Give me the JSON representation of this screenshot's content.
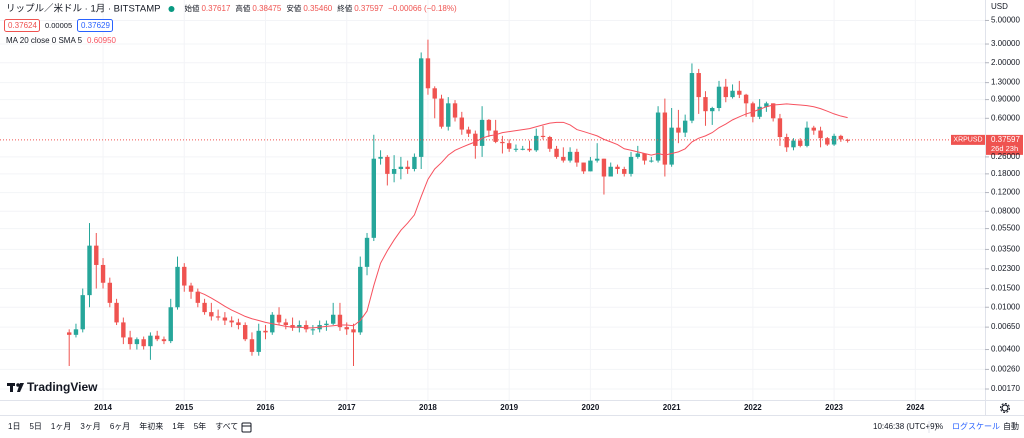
{
  "chart_data": {
    "type": "candlestick",
    "log_scale": true,
    "grid": true,
    "currency": "USD",
    "up_color": "#26a69a",
    "down_color": "#ef5350",
    "ylim": [
      0.00134,
      6.55
    ],
    "yticks": [
      {
        "value": 5,
        "label": "5.00000"
      },
      {
        "value": 3,
        "label": "3.00000"
      },
      {
        "value": 2,
        "label": "2.00000"
      },
      {
        "value": 1.3,
        "label": "1.30000"
      },
      {
        "value": 0.9,
        "label": "0.90000"
      },
      {
        "value": 0.6,
        "label": "0.60000"
      },
      {
        "value": 0.26,
        "label": "0.26000"
      },
      {
        "value": 0.18,
        "label": "0.18000"
      },
      {
        "value": 0.12,
        "label": "0.12000"
      },
      {
        "value": 0.08,
        "label": "0.08000"
      },
      {
        "value": 0.055,
        "label": "0.05500"
      },
      {
        "value": 0.035,
        "label": "0.03500"
      },
      {
        "value": 0.023,
        "label": "0.02300"
      },
      {
        "value": 0.015,
        "label": "0.01500"
      },
      {
        "value": 0.01,
        "label": "0.01000"
      },
      {
        "value": 0.0065,
        "label": "0.00650"
      },
      {
        "value": 0.004,
        "label": "0.00400"
      },
      {
        "value": 0.0026,
        "label": "0.00260"
      },
      {
        "value": 0.0017,
        "label": "0.00170"
      }
    ],
    "categories": [
      null,
      null,
      null,
      null,
      null,
      "2014",
      null,
      null,
      null,
      null,
      null,
      null,
      null,
      null,
      null,
      null,
      null,
      "2015",
      null,
      null,
      null,
      null,
      null,
      null,
      null,
      null,
      null,
      null,
      null,
      "2016",
      null,
      null,
      null,
      null,
      null,
      null,
      null,
      null,
      null,
      null,
      null,
      "2017",
      null,
      null,
      null,
      null,
      null,
      null,
      null,
      null,
      null,
      null,
      null,
      "2018",
      null,
      null,
      null,
      null,
      null,
      null,
      null,
      null,
      null,
      null,
      null,
      "2019",
      null,
      null,
      null,
      null,
      null,
      null,
      null,
      null,
      null,
      null,
      null,
      "2020",
      null,
      null,
      null,
      null,
      null,
      null,
      null,
      null,
      null,
      null,
      null,
      "2021",
      null,
      null,
      null,
      null,
      null,
      null,
      null,
      null,
      null,
      null,
      null,
      "2022",
      null,
      null,
      null,
      null,
      null,
      null,
      null,
      null,
      null,
      null,
      null,
      "2023",
      null,
      null,
      null,
      null,
      null,
      null,
      null,
      null,
      null,
      null,
      null,
      "2024",
      null,
      null,
      null,
      null,
      null,
      null,
      null,
      null,
      null,
      null
    ],
    "open": [
      0.0058,
      0.0055,
      0.0062,
      0.013,
      0.038,
      0.025,
      0.017,
      0.011,
      0.0072,
      0.0052,
      0.0045,
      0.005,
      0.0043,
      0.0054,
      0.005,
      0.0048,
      0.01,
      0.024,
      0.016,
      0.014,
      0.011,
      0.009,
      0.0082,
      0.008,
      0.0075,
      0.0072,
      0.0068,
      0.005,
      0.0038,
      0.006,
      0.0058,
      0.0085,
      0.0072,
      0.0068,
      0.0064,
      0.0068,
      0.0062,
      0.0062,
      0.0068,
      0.007,
      0.0085,
      0.0065,
      0.0062,
      0.0058,
      0.024,
      0.045,
      0.25,
      0.26,
      0.18,
      0.2,
      0.21,
      0.2,
      0.26,
      2.2,
      1.15,
      0.92,
      0.5,
      0.83,
      0.61,
      0.47,
      0.43,
      0.33,
      0.58,
      0.46,
      0.36,
      0.35,
      0.31,
      0.31,
      0.31,
      0.3,
      0.41,
      0.4,
      0.31,
      0.26,
      0.24,
      0.29,
      0.23,
      0.19,
      0.24,
      0.25,
      0.17,
      0.21,
      0.2,
      0.18,
      0.26,
      0.28,
      0.24,
      0.24,
      0.68,
      0.22,
      0.49,
      0.44,
      0.57,
      1.6,
      0.95,
      0.7,
      0.75,
      1.19,
      0.95,
      1.09,
      1.0,
      0.83,
      0.62,
      0.77,
      0.83,
      0.6,
      0.4,
      0.32,
      0.37,
      0.33,
      0.49,
      0.46,
      0.39,
      0.34,
      0.41,
      0.37617,
      null,
      null,
      null,
      null,
      null,
      null,
      null,
      null,
      null,
      null,
      null,
      null,
      null,
      null,
      null,
      null,
      null,
      null,
      null,
      null
    ],
    "high": [
      0.0062,
      0.007,
      0.015,
      0.062,
      0.05,
      0.029,
      0.019,
      0.012,
      0.008,
      0.006,
      0.0052,
      0.0053,
      0.0058,
      0.006,
      0.0053,
      0.012,
      0.03,
      0.026,
      0.017,
      0.015,
      0.012,
      0.011,
      0.0095,
      0.009,
      0.0082,
      0.0078,
      0.0072,
      0.0058,
      0.007,
      0.0068,
      0.009,
      0.01,
      0.0078,
      0.008,
      0.0075,
      0.0075,
      0.0068,
      0.0075,
      0.0075,
      0.011,
      0.011,
      0.0072,
      0.007,
      0.03,
      0.05,
      0.42,
      0.3,
      0.27,
      0.27,
      0.26,
      0.24,
      0.28,
      2.5,
      3.3,
      1.2,
      1.0,
      0.95,
      0.89,
      0.69,
      0.5,
      0.46,
      0.78,
      0.59,
      0.58,
      0.41,
      0.38,
      0.34,
      0.33,
      0.37,
      0.48,
      0.51,
      0.41,
      0.33,
      0.32,
      0.32,
      0.31,
      0.23,
      0.26,
      0.35,
      0.25,
      0.23,
      0.22,
      0.21,
      0.29,
      0.33,
      0.28,
      0.26,
      0.78,
      0.92,
      0.75,
      0.72,
      0.65,
      1.97,
      1.75,
      1.08,
      0.77,
      1.35,
      1.41,
      1.25,
      1.35,
      1.02,
      0.86,
      0.91,
      0.86,
      0.83,
      0.66,
      0.43,
      0.39,
      0.39,
      0.56,
      0.51,
      0.5,
      0.4,
      0.43,
      0.42,
      0.38475,
      null,
      null,
      null,
      null,
      null,
      null,
      null,
      null,
      null,
      null,
      null,
      null,
      null,
      null,
      null,
      null,
      null,
      null,
      null,
      null
    ],
    "low": [
      0.0028,
      0.0052,
      0.0058,
      0.01,
      0.015,
      0.015,
      0.01,
      0.0068,
      0.0045,
      0.004,
      0.004,
      0.004,
      0.0032,
      0.0048,
      0.0045,
      0.0046,
      0.0095,
      0.014,
      0.012,
      0.01,
      0.0085,
      0.0075,
      0.0075,
      0.0068,
      0.0065,
      0.0062,
      0.0048,
      0.0035,
      0.0035,
      0.005,
      0.0055,
      0.0068,
      0.0062,
      0.006,
      0.0058,
      0.0058,
      0.0055,
      0.0058,
      0.006,
      0.0068,
      0.006,
      0.0055,
      0.0028,
      0.0055,
      0.02,
      0.042,
      0.22,
      0.14,
      0.15,
      0.16,
      0.18,
      0.19,
      0.2,
      1.0,
      0.6,
      0.48,
      0.46,
      0.56,
      0.42,
      0.4,
      0.25,
      0.26,
      0.4,
      0.35,
      0.28,
      0.29,
      0.29,
      0.3,
      0.29,
      0.29,
      0.38,
      0.29,
      0.25,
      0.23,
      0.23,
      0.21,
      0.18,
      0.19,
      0.23,
      0.115,
      0.17,
      0.18,
      0.17,
      0.17,
      0.25,
      0.22,
      0.23,
      0.23,
      0.17,
      0.21,
      0.35,
      0.4,
      0.54,
      0.66,
      0.51,
      0.52,
      0.7,
      0.85,
      0.92,
      0.93,
      0.62,
      0.55,
      0.59,
      0.69,
      0.56,
      0.33,
      0.29,
      0.3,
      0.32,
      0.32,
      0.42,
      0.32,
      0.33,
      0.33,
      0.36,
      0.3546,
      null,
      null,
      null,
      null,
      null,
      null,
      null,
      null,
      null,
      null,
      null,
      null,
      null,
      null,
      null,
      null,
      null,
      null,
      null,
      null
    ],
    "close": [
      0.0055,
      0.0062,
      0.013,
      0.038,
      0.025,
      0.017,
      0.011,
      0.0072,
      0.0052,
      0.0045,
      0.005,
      0.0043,
      0.0054,
      0.005,
      0.0048,
      0.01,
      0.024,
      0.016,
      0.014,
      0.011,
      0.009,
      0.0082,
      0.008,
      0.0075,
      0.0072,
      0.0068,
      0.005,
      0.0038,
      0.006,
      0.0058,
      0.0085,
      0.0072,
      0.0068,
      0.0064,
      0.0068,
      0.0062,
      0.0062,
      0.0068,
      0.007,
      0.0085,
      0.0065,
      0.0062,
      0.0058,
      0.024,
      0.045,
      0.25,
      0.26,
      0.18,
      0.2,
      0.21,
      0.2,
      0.26,
      2.2,
      1.15,
      0.92,
      0.5,
      0.83,
      0.61,
      0.47,
      0.43,
      0.33,
      0.58,
      0.46,
      0.36,
      0.35,
      0.31,
      0.31,
      0.31,
      0.3,
      0.41,
      0.4,
      0.31,
      0.26,
      0.24,
      0.29,
      0.23,
      0.19,
      0.24,
      0.25,
      0.17,
      0.21,
      0.2,
      0.18,
      0.26,
      0.28,
      0.24,
      0.24,
      0.68,
      0.22,
      0.49,
      0.44,
      0.57,
      1.6,
      0.95,
      0.7,
      0.75,
      1.19,
      0.95,
      1.09,
      1.0,
      0.83,
      0.62,
      0.77,
      0.83,
      0.6,
      0.4,
      0.32,
      0.37,
      0.33,
      0.49,
      0.46,
      0.39,
      0.34,
      0.41,
      0.38,
      0.37597,
      null,
      null,
      null,
      null,
      null,
      null,
      null,
      null,
      null,
      null,
      null,
      null,
      null,
      null,
      null,
      null,
      null,
      null,
      null,
      null
    ],
    "overlays": [
      {
        "name": "MA 20 close 0 SMA 5",
        "legend_value": "0.60950",
        "color": "#f7525f",
        "values": [
          null,
          null,
          null,
          null,
          null,
          null,
          null,
          null,
          null,
          null,
          null,
          null,
          null,
          null,
          null,
          null,
          null,
          null,
          null,
          0.014,
          0.0132,
          0.0122,
          0.0112,
          0.0102,
          0.0094,
          0.0088,
          0.0082,
          0.0078,
          0.0075,
          0.0072,
          0.007,
          0.0068,
          0.0066,
          0.0065,
          0.0065,
          0.0064,
          0.0064,
          0.0065,
          0.0066,
          0.0067,
          0.0068,
          0.0068,
          0.0067,
          0.0075,
          0.0092,
          0.016,
          0.026,
          0.034,
          0.043,
          0.053,
          0.062,
          0.074,
          0.11,
          0.16,
          0.2,
          0.23,
          0.27,
          0.3,
          0.32,
          0.34,
          0.36,
          0.39,
          0.41,
          0.42,
          0.44,
          0.45,
          0.46,
          0.47,
          0.48,
          0.5,
          0.52,
          0.54,
          0.55,
          0.55,
          0.52,
          0.47,
          0.45,
          0.43,
          0.41,
          0.38,
          0.36,
          0.34,
          0.31,
          0.3,
          0.29,
          0.28,
          0.27,
          0.28,
          0.27,
          0.28,
          0.29,
          0.31,
          0.36,
          0.39,
          0.41,
          0.44,
          0.49,
          0.53,
          0.58,
          0.62,
          0.66,
          0.69,
          0.73,
          0.77,
          0.8,
          0.81,
          0.82,
          0.81,
          0.8,
          0.79,
          0.77,
          0.74,
          0.7,
          0.66,
          0.63,
          0.6095,
          null,
          null,
          null,
          null,
          null,
          null,
          null,
          null,
          null,
          null,
          null,
          null,
          null,
          null,
          null,
          null,
          null,
          null,
          null,
          null
        ]
      }
    ],
    "last_price": {
      "symbol": "XRPUSD",
      "label": "0.37597",
      "countdown": "26d 23h"
    }
  },
  "header": {
    "symbol": "リップル／米ドル · 1月 · BITSTAMP",
    "ohlc": [
      {
        "label": "始値",
        "value": "0.37617"
      },
      {
        "label": "高値",
        "value": "0.38475"
      },
      {
        "label": "安値",
        "value": "0.35460"
      },
      {
        "label": "終値",
        "value": "0.37597"
      }
    ],
    "change": "−0.00066 (−0.18%)",
    "bid": "0.37624",
    "spread": "0.00005",
    "ask": "0.37629"
  },
  "logo": "TradingView",
  "toolbar": {
    "ranges": [
      "1日",
      "5日",
      "1ヶ月",
      "3ヶ月",
      "6ヶ月",
      "年初来",
      "1年",
      "5年",
      "すべて"
    ],
    "time": "10:46:38 (UTC+9)",
    "percent": "%",
    "log": "ログスケール",
    "auto": "自動"
  }
}
